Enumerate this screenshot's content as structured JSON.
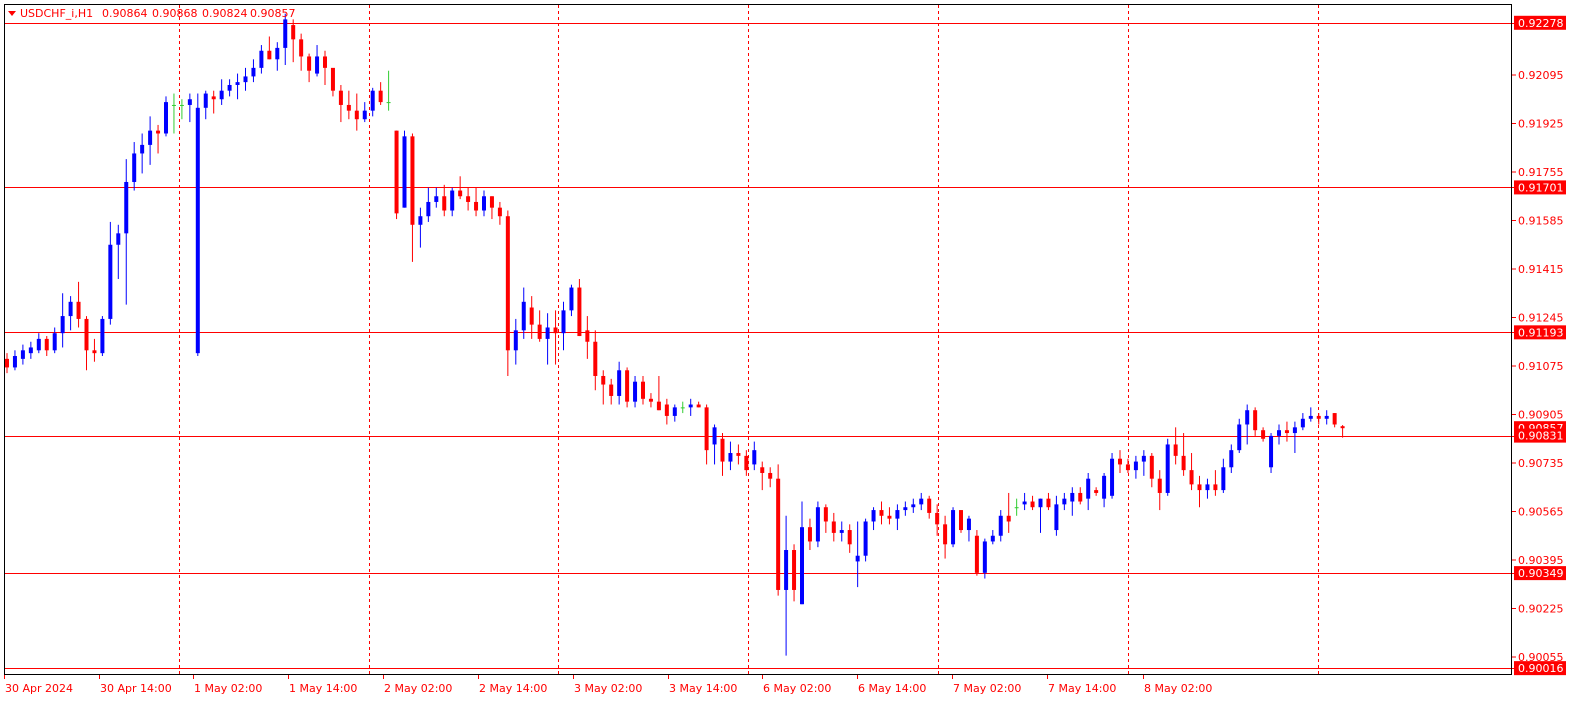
{
  "chart_data": {
    "type": "candlestick",
    "header": {
      "symbol": "USDCHF_i,H1",
      "open": "0.90864",
      "high": "0.90868",
      "low": "0.90824",
      "close": "0.90857"
    },
    "price_axis": {
      "min": 0.9,
      "max": 0.9232,
      "ticks": [
        "0.92095",
        "0.91925",
        "0.91755",
        "0.91585",
        "0.91415",
        "0.91245",
        "0.91075",
        "0.90905",
        "0.90735",
        "0.90565",
        "0.90395",
        "0.90225",
        "0.90055"
      ]
    },
    "time_axis": {
      "labels": [
        "30 Apr 2024",
        "30 Apr 14:00",
        "1 May 02:00",
        "1 May 14:00",
        "2 May 02:00",
        "2 May 14:00",
        "3 May 02:00",
        "3 May 14:00",
        "6 May 02:00",
        "6 May 14:00",
        "7 May 02:00",
        "7 May 14:00",
        "8 May 02:00"
      ],
      "day_separators": [
        "1 May",
        "2 May",
        "3 May",
        "6 May",
        "7 May",
        "8 May"
      ]
    },
    "levels": [
      {
        "label": "0.92278",
        "value": 0.92278
      },
      {
        "label": "0.91701",
        "value": 0.91701
      },
      {
        "label": "0.91193",
        "value": 0.91193
      },
      {
        "label": "0.90831",
        "value": 0.90831
      },
      {
        "label": "0.90349",
        "value": 0.90349
      },
      {
        "label": "0.90016",
        "value": 0.90016
      }
    ],
    "current_price": {
      "label": "0.90857",
      "value": 0.90857
    },
    "colors": {
      "bull": "#0000ff",
      "bear": "#ff0000",
      "neutral": "#32cd32",
      "grid": "#ff0000",
      "axis_text": "#ff0000",
      "level_line": "#ff0000",
      "level_label_bg": "#ff0000",
      "level_label_text": "#ffffff",
      "header_text": "#ff0000"
    },
    "series": [
      {
        "o": 0.911,
        "h": 0.9112,
        "l": 0.9105,
        "c": 0.9107
      },
      {
        "o": 0.9107,
        "h": 0.9113,
        "l": 0.9106,
        "c": 0.9111
      },
      {
        "o": 0.911,
        "h": 0.9115,
        "l": 0.9108,
        "c": 0.9113
      },
      {
        "o": 0.9112,
        "h": 0.9116,
        "l": 0.911,
        "c": 0.9114
      },
      {
        "o": 0.9113,
        "h": 0.9119,
        "l": 0.9112,
        "c": 0.9117
      },
      {
        "o": 0.9117,
        "h": 0.9118,
        "l": 0.9111,
        "c": 0.9113
      },
      {
        "o": 0.9113,
        "h": 0.9121,
        "l": 0.9112,
        "c": 0.9119
      },
      {
        "o": 0.9119,
        "h": 0.9133,
        "l": 0.9114,
        "c": 0.9125
      },
      {
        "o": 0.9125,
        "h": 0.9132,
        "l": 0.912,
        "c": 0.913
      },
      {
        "o": 0.913,
        "h": 0.9137,
        "l": 0.9121,
        "c": 0.9124
      },
      {
        "o": 0.9124,
        "h": 0.9125,
        "l": 0.9106,
        "c": 0.9113
      },
      {
        "o": 0.9113,
        "h": 0.9117,
        "l": 0.9109,
        "c": 0.9112
      },
      {
        "o": 0.9112,
        "h": 0.9125,
        "l": 0.9111,
        "c": 0.9124
      },
      {
        "o": 0.9124,
        "h": 0.9158,
        "l": 0.9122,
        "c": 0.915
      },
      {
        "o": 0.915,
        "h": 0.9157,
        "l": 0.9138,
        "c": 0.9154
      },
      {
        "o": 0.9154,
        "h": 0.918,
        "l": 0.9129,
        "c": 0.9172
      },
      {
        "o": 0.9172,
        "h": 0.9186,
        "l": 0.9169,
        "c": 0.9182
      },
      {
        "o": 0.9182,
        "h": 0.9189,
        "l": 0.9175,
        "c": 0.9185
      },
      {
        "o": 0.9185,
        "h": 0.9195,
        "l": 0.9178,
        "c": 0.919
      },
      {
        "o": 0.919,
        "h": 0.9192,
        "l": 0.9182,
        "c": 0.9189
      },
      {
        "o": 0.9189,
        "h": 0.9202,
        "l": 0.9188,
        "c": 0.92
      },
      {
        "o": 0.9199,
        "h": 0.9203,
        "l": 0.9189,
        "c": 0.9199
      },
      {
        "o": 0.9199,
        "h": 0.9201,
        "l": 0.9194,
        "c": 0.9199
      },
      {
        "o": 0.9199,
        "h": 0.9203,
        "l": 0.9193,
        "c": 0.9201
      },
      {
        "o": 0.9112,
        "h": 0.9203,
        "l": 0.9111,
        "c": 0.9198
      },
      {
        "o": 0.9198,
        "h": 0.9204,
        "l": 0.9194,
        "c": 0.9203
      },
      {
        "o": 0.9202,
        "h": 0.9204,
        "l": 0.9196,
        "c": 0.9201
      },
      {
        "o": 0.9201,
        "h": 0.9208,
        "l": 0.9199,
        "c": 0.9204
      },
      {
        "o": 0.9204,
        "h": 0.9208,
        "l": 0.9202,
        "c": 0.9206
      },
      {
        "o": 0.9206,
        "h": 0.921,
        "l": 0.9201,
        "c": 0.9207
      },
      {
        "o": 0.9207,
        "h": 0.9212,
        "l": 0.9204,
        "c": 0.9209
      },
      {
        "o": 0.9209,
        "h": 0.9215,
        "l": 0.9207,
        "c": 0.9212
      },
      {
        "o": 0.9212,
        "h": 0.922,
        "l": 0.921,
        "c": 0.9218
      },
      {
        "o": 0.9218,
        "h": 0.9223,
        "l": 0.9215,
        "c": 0.9215
      },
      {
        "o": 0.9215,
        "h": 0.9221,
        "l": 0.9211,
        "c": 0.9219
      },
      {
        "o": 0.9219,
        "h": 0.9231,
        "l": 0.9213,
        "c": 0.9229
      },
      {
        "o": 0.9227,
        "h": 0.9229,
        "l": 0.9214,
        "c": 0.9222
      },
      {
        "o": 0.9222,
        "h": 0.9224,
        "l": 0.9211,
        "c": 0.9216
      },
      {
        "o": 0.9216,
        "h": 0.9217,
        "l": 0.9207,
        "c": 0.9211
      },
      {
        "o": 0.921,
        "h": 0.922,
        "l": 0.9209,
        "c": 0.9216
      },
      {
        "o": 0.9216,
        "h": 0.9218,
        "l": 0.9206,
        "c": 0.9212
      },
      {
        "o": 0.9212,
        "h": 0.9211,
        "l": 0.9202,
        "c": 0.9204
      },
      {
        "o": 0.9204,
        "h": 0.9206,
        "l": 0.9193,
        "c": 0.9199
      },
      {
        "o": 0.9199,
        "h": 0.9204,
        "l": 0.9194,
        "c": 0.9197
      },
      {
        "o": 0.9197,
        "h": 0.9203,
        "l": 0.919,
        "c": 0.9194
      },
      {
        "o": 0.9194,
        "h": 0.92,
        "l": 0.9193,
        "c": 0.9197
      },
      {
        "o": 0.9197,
        "h": 0.9205,
        "l": 0.9195,
        "c": 0.9204
      },
      {
        "o": 0.9204,
        "h": 0.9207,
        "l": 0.9199,
        "c": 0.92
      },
      {
        "o": 0.92,
        "h": 0.9211,
        "l": 0.9197,
        "c": 0.92
      },
      {
        "o": 0.919,
        "h": 0.919,
        "l": 0.9159,
        "c": 0.9161
      },
      {
        "o": 0.9163,
        "h": 0.919,
        "l": 0.9163,
        "c": 0.9188
      },
      {
        "o": 0.9188,
        "h": 0.9189,
        "l": 0.9144,
        "c": 0.9157
      },
      {
        "o": 0.9157,
        "h": 0.9163,
        "l": 0.9149,
        "c": 0.916
      },
      {
        "o": 0.916,
        "h": 0.917,
        "l": 0.9158,
        "c": 0.9165
      },
      {
        "o": 0.9165,
        "h": 0.917,
        "l": 0.9163,
        "c": 0.9167
      },
      {
        "o": 0.9167,
        "h": 0.9171,
        "l": 0.916,
        "c": 0.9162
      },
      {
        "o": 0.9162,
        "h": 0.917,
        "l": 0.916,
        "c": 0.9169
      },
      {
        "o": 0.9169,
        "h": 0.9174,
        "l": 0.9166,
        "c": 0.9167
      },
      {
        "o": 0.9167,
        "h": 0.917,
        "l": 0.9162,
        "c": 0.9165
      },
      {
        "o": 0.9165,
        "h": 0.917,
        "l": 0.916,
        "c": 0.9162
      },
      {
        "o": 0.9162,
        "h": 0.9169,
        "l": 0.916,
        "c": 0.9167
      },
      {
        "o": 0.9167,
        "h": 0.9167,
        "l": 0.9159,
        "c": 0.9163
      },
      {
        "o": 0.9163,
        "h": 0.9165,
        "l": 0.9157,
        "c": 0.916
      },
      {
        "o": 0.916,
        "h": 0.9162,
        "l": 0.9104,
        "c": 0.9113
      },
      {
        "o": 0.9113,
        "h": 0.9124,
        "l": 0.9108,
        "c": 0.912
      },
      {
        "o": 0.912,
        "h": 0.9135,
        "l": 0.9117,
        "c": 0.913
      },
      {
        "o": 0.9128,
        "h": 0.9132,
        "l": 0.9117,
        "c": 0.9122
      },
      {
        "o": 0.9122,
        "h": 0.9127,
        "l": 0.9116,
        "c": 0.9117
      },
      {
        "o": 0.9117,
        "h": 0.9126,
        "l": 0.9108,
        "c": 0.9121
      },
      {
        "o": 0.9121,
        "h": 0.9127,
        "l": 0.9108,
        "c": 0.9119
      },
      {
        "o": 0.9119,
        "h": 0.913,
        "l": 0.9113,
        "c": 0.9127
      },
      {
        "o": 0.9127,
        "h": 0.9136,
        "l": 0.9125,
        "c": 0.9135
      },
      {
        "o": 0.9135,
        "h": 0.9138,
        "l": 0.9118,
        "c": 0.9118
      },
      {
        "o": 0.912,
        "h": 0.9125,
        "l": 0.911,
        "c": 0.9116
      },
      {
        "o": 0.9116,
        "h": 0.912,
        "l": 0.9099,
        "c": 0.9104
      },
      {
        "o": 0.9104,
        "h": 0.9106,
        "l": 0.9094,
        "c": 0.9101
      },
      {
        "o": 0.9101,
        "h": 0.9103,
        "l": 0.9094,
        "c": 0.9097
      },
      {
        "o": 0.9097,
        "h": 0.9109,
        "l": 0.9094,
        "c": 0.9106
      },
      {
        "o": 0.9106,
        "h": 0.9107,
        "l": 0.9093,
        "c": 0.9095
      },
      {
        "o": 0.9095,
        "h": 0.9104,
        "l": 0.9093,
        "c": 0.9102
      },
      {
        "o": 0.9102,
        "h": 0.9104,
        "l": 0.9094,
        "c": 0.9096
      },
      {
        "o": 0.9096,
        "h": 0.9098,
        "l": 0.9093,
        "c": 0.9095
      },
      {
        "o": 0.9095,
        "h": 0.9104,
        "l": 0.9092,
        "c": 0.9092
      },
      {
        "o": 0.9094,
        "h": 0.9096,
        "l": 0.9087,
        "c": 0.909
      },
      {
        "o": 0.909,
        "h": 0.9094,
        "l": 0.9088,
        "c": 0.9093
      },
      {
        "o": 0.9093,
        "h": 0.9095,
        "l": 0.9091,
        "c": 0.9093
      },
      {
        "o": 0.9093,
        "h": 0.9096,
        "l": 0.909,
        "c": 0.9094
      },
      {
        "o": 0.9094,
        "h": 0.9095,
        "l": 0.9093,
        "c": 0.9093
      },
      {
        "o": 0.9093,
        "h": 0.9094,
        "l": 0.9073,
        "c": 0.9078
      },
      {
        "o": 0.908,
        "h": 0.9087,
        "l": 0.9073,
        "c": 0.9086
      },
      {
        "o": 0.9082,
        "h": 0.9084,
        "l": 0.9069,
        "c": 0.9074
      },
      {
        "o": 0.9074,
        "h": 0.9081,
        "l": 0.9071,
        "c": 0.9077
      },
      {
        "o": 0.9077,
        "h": 0.908,
        "l": 0.9073,
        "c": 0.9076
      },
      {
        "o": 0.9076,
        "h": 0.9078,
        "l": 0.9069,
        "c": 0.9071
      },
      {
        "o": 0.9073,
        "h": 0.9081,
        "l": 0.9071,
        "c": 0.9078
      },
      {
        "o": 0.9072,
        "h": 0.9074,
        "l": 0.9064,
        "c": 0.907
      },
      {
        "o": 0.907,
        "h": 0.9072,
        "l": 0.9065,
        "c": 0.9068
      },
      {
        "o": 0.9068,
        "h": 0.9073,
        "l": 0.9027,
        "c": 0.9029
      },
      {
        "o": 0.9029,
        "h": 0.9055,
        "l": 0.9006,
        "c": 0.9043
      },
      {
        "o": 0.9043,
        "h": 0.9045,
        "l": 0.9025,
        "c": 0.9029
      },
      {
        "o": 0.9024,
        "h": 0.906,
        "l": 0.9024,
        "c": 0.9051
      },
      {
        "o": 0.9051,
        "h": 0.9054,
        "l": 0.9043,
        "c": 0.9046
      },
      {
        "o": 0.9046,
        "h": 0.906,
        "l": 0.9044,
        "c": 0.9058
      },
      {
        "o": 0.9058,
        "h": 0.9059,
        "l": 0.9049,
        "c": 0.9053
      },
      {
        "o": 0.9053,
        "h": 0.9056,
        "l": 0.9046,
        "c": 0.9049
      },
      {
        "o": 0.9049,
        "h": 0.9053,
        "l": 0.9046,
        "c": 0.905
      },
      {
        "o": 0.905,
        "h": 0.9052,
        "l": 0.9042,
        "c": 0.9045
      },
      {
        "o": 0.9039,
        "h": 0.9053,
        "l": 0.903,
        "c": 0.9041
      },
      {
        "o": 0.9041,
        "h": 0.9054,
        "l": 0.9039,
        "c": 0.9053
      },
      {
        "o": 0.9053,
        "h": 0.9058,
        "l": 0.905,
        "c": 0.9057
      },
      {
        "o": 0.9057,
        "h": 0.906,
        "l": 0.9052,
        "c": 0.9055
      },
      {
        "o": 0.9055,
        "h": 0.9058,
        "l": 0.9052,
        "c": 0.9054
      },
      {
        "o": 0.9054,
        "h": 0.9059,
        "l": 0.905,
        "c": 0.9057
      },
      {
        "o": 0.9057,
        "h": 0.906,
        "l": 0.9055,
        "c": 0.9058
      },
      {
        "o": 0.9058,
        "h": 0.9061,
        "l": 0.9056,
        "c": 0.9059
      },
      {
        "o": 0.9059,
        "h": 0.9063,
        "l": 0.9057,
        "c": 0.9061
      },
      {
        "o": 0.9061,
        "h": 0.9062,
        "l": 0.9054,
        "c": 0.9056
      },
      {
        "o": 0.9056,
        "h": 0.9059,
        "l": 0.9048,
        "c": 0.9052
      },
      {
        "o": 0.9052,
        "h": 0.9055,
        "l": 0.904,
        "c": 0.9045
      },
      {
        "o": 0.9045,
        "h": 0.9058,
        "l": 0.9044,
        "c": 0.9057
      },
      {
        "o": 0.9057,
        "h": 0.9057,
        "l": 0.9049,
        "c": 0.905
      },
      {
        "o": 0.905,
        "h": 0.9055,
        "l": 0.9046,
        "c": 0.9054
      },
      {
        "o": 0.9048,
        "h": 0.905,
        "l": 0.9034,
        "c": 0.9035
      },
      {
        "o": 0.9035,
        "h": 0.9047,
        "l": 0.9033,
        "c": 0.9046
      },
      {
        "o": 0.9046,
        "h": 0.905,
        "l": 0.9045,
        "c": 0.9048
      },
      {
        "o": 0.9048,
        "h": 0.9057,
        "l": 0.9046,
        "c": 0.9055
      },
      {
        "o": 0.9055,
        "h": 0.9063,
        "l": 0.9049,
        "c": 0.9053
      },
      {
        "o": 0.9058,
        "h": 0.9061,
        "l": 0.9055,
        "c": 0.9058
      },
      {
        "o": 0.9059,
        "h": 0.9063,
        "l": 0.9057,
        "c": 0.906
      },
      {
        "o": 0.906,
        "h": 0.9062,
        "l": 0.9057,
        "c": 0.9058
      },
      {
        "o": 0.9058,
        "h": 0.9061,
        "l": 0.9049,
        "c": 0.9061
      },
      {
        "o": 0.9061,
        "h": 0.9063,
        "l": 0.9057,
        "c": 0.9058
      },
      {
        "o": 0.905,
        "h": 0.9062,
        "l": 0.9048,
        "c": 0.9059
      },
      {
        "o": 0.9059,
        "h": 0.9063,
        "l": 0.9057,
        "c": 0.9061
      },
      {
        "o": 0.906,
        "h": 0.9065,
        "l": 0.9055,
        "c": 0.9063
      },
      {
        "o": 0.9063,
        "h": 0.9065,
        "l": 0.9059,
        "c": 0.906
      },
      {
        "o": 0.9061,
        "h": 0.907,
        "l": 0.9057,
        "c": 0.9068
      },
      {
        "o": 0.9064,
        "h": 0.9065,
        "l": 0.9062,
        "c": 0.9063
      },
      {
        "o": 0.9061,
        "h": 0.907,
        "l": 0.9058,
        "c": 0.9069
      },
      {
        "o": 0.9062,
        "h": 0.9077,
        "l": 0.9061,
        "c": 0.9075
      },
      {
        "o": 0.9075,
        "h": 0.9078,
        "l": 0.907,
        "c": 0.9073
      },
      {
        "o": 0.9073,
        "h": 0.9075,
        "l": 0.907,
        "c": 0.9071
      },
      {
        "o": 0.9071,
        "h": 0.9076,
        "l": 0.9068,
        "c": 0.9074
      },
      {
        "o": 0.9074,
        "h": 0.9078,
        "l": 0.9069,
        "c": 0.9076
      },
      {
        "o": 0.9076,
        "h": 0.9077,
        "l": 0.9065,
        "c": 0.9068
      },
      {
        "o": 0.9068,
        "h": 0.9071,
        "l": 0.9057,
        "c": 0.9063
      },
      {
        "o": 0.9063,
        "h": 0.9082,
        "l": 0.9062,
        "c": 0.908
      },
      {
        "o": 0.908,
        "h": 0.9086,
        "l": 0.9073,
        "c": 0.9076
      },
      {
        "o": 0.9076,
        "h": 0.9084,
        "l": 0.9069,
        "c": 0.9071
      },
      {
        "o": 0.9071,
        "h": 0.9077,
        "l": 0.9064,
        "c": 0.9066
      },
      {
        "o": 0.9066,
        "h": 0.9069,
        "l": 0.9058,
        "c": 0.9064
      },
      {
        "o": 0.9064,
        "h": 0.9068,
        "l": 0.9061,
        "c": 0.9066
      },
      {
        "o": 0.9066,
        "h": 0.9071,
        "l": 0.9062,
        "c": 0.9064
      },
      {
        "o": 0.9064,
        "h": 0.9075,
        "l": 0.9063,
        "c": 0.9072
      },
      {
        "o": 0.9072,
        "h": 0.908,
        "l": 0.907,
        "c": 0.9078
      },
      {
        "o": 0.9078,
        "h": 0.9089,
        "l": 0.9077,
        "c": 0.9087
      },
      {
        "o": 0.9087,
        "h": 0.9094,
        "l": 0.908,
        "c": 0.9092
      },
      {
        "o": 0.9092,
        "h": 0.9093,
        "l": 0.9083,
        "c": 0.9085
      },
      {
        "o": 0.9085,
        "h": 0.9086,
        "l": 0.9081,
        "c": 0.9082
      },
      {
        "o": 0.9072,
        "h": 0.9084,
        "l": 0.907,
        "c": 0.9083
      },
      {
        "o": 0.9083,
        "h": 0.9087,
        "l": 0.908,
        "c": 0.9085
      },
      {
        "o": 0.9085,
        "h": 0.9088,
        "l": 0.9081,
        "c": 0.9084
      },
      {
        "o": 0.9084,
        "h": 0.9088,
        "l": 0.9077,
        "c": 0.9086
      },
      {
        "o": 0.9086,
        "h": 0.9091,
        "l": 0.9085,
        "c": 0.9089
      },
      {
        "o": 0.9089,
        "h": 0.9093,
        "l": 0.9088,
        "c": 0.909
      },
      {
        "o": 0.909,
        "h": 0.9091,
        "l": 0.9087,
        "c": 0.9089
      },
      {
        "o": 0.9089,
        "h": 0.9092,
        "l": 0.9087,
        "c": 0.909
      },
      {
        "o": 0.9091,
        "h": 0.9091,
        "l": 0.9086,
        "c": 0.9087
      },
      {
        "o": 0.90864,
        "h": 0.90868,
        "l": 0.90824,
        "c": 0.90857
      }
    ]
  }
}
